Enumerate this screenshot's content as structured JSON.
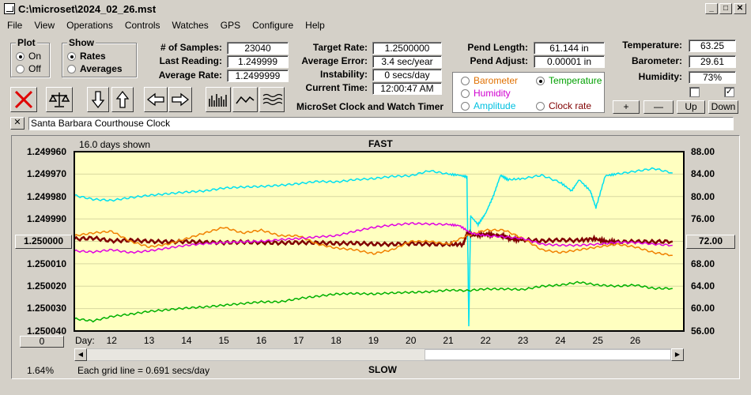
{
  "window": {
    "title": "C:\\microset\\2024_02_26.mst"
  },
  "menu": [
    "File",
    "View",
    "Operations",
    "Controls",
    "Watches",
    "GPS",
    "Configure",
    "Help"
  ],
  "plot_group": {
    "label": "Plot",
    "options": [
      {
        "label": "On",
        "selected": true
      },
      {
        "label": "Off",
        "selected": false
      }
    ]
  },
  "show_group": {
    "label": "Show",
    "options": [
      {
        "label": "Rates",
        "selected": true
      },
      {
        "label": "Averages",
        "selected": false
      }
    ]
  },
  "stats": {
    "samples": {
      "label": "# of Samples:",
      "value": "23040"
    },
    "last_reading": {
      "label": "Last Reading:",
      "value": "1.249999"
    },
    "average_rate": {
      "label": "Average Rate:",
      "value": "1.2499999"
    },
    "target_rate": {
      "label": "Target Rate:",
      "value": "1.2500000"
    },
    "average_error": {
      "label": "Average Error:",
      "value": "3.4 sec/year"
    },
    "instability": {
      "label": "Instability:",
      "value": "0 secs/day"
    },
    "current_time": {
      "label": "Current Time:",
      "value": "12:00:47 AM"
    },
    "pend_length": {
      "label": "Pend Length:",
      "value": "61.144 in"
    },
    "pend_adjust": {
      "label": "Pend Adjust:",
      "value": "0.00001 in"
    },
    "temperature": {
      "label": "Temperature:",
      "value": "63.25"
    },
    "barometer": {
      "label": "Barometer:",
      "value": "29.61"
    },
    "humidity": {
      "label": "Humidity:",
      "value": "73%"
    }
  },
  "app_caption": "MicroSet Clock and Watch Timer",
  "sensor_select": {
    "options": [
      {
        "label": "Barometer",
        "color": "#e07000",
        "selected": false
      },
      {
        "label": "Temperature",
        "color": "#00a000",
        "selected": true
      },
      {
        "label": "Humidity",
        "color": "#d000d0",
        "selected": false
      },
      {
        "label": "Amplitude",
        "color": "#00c0e0",
        "selected": false
      },
      {
        "label": "Clock rate",
        "color": "#800000",
        "selected": false
      }
    ]
  },
  "sensor_buttons": {
    "plus": "+",
    "minus": "—",
    "up": "Up",
    "down": "Down"
  },
  "checks": [
    {
      "checked": false
    },
    {
      "checked": true
    }
  ],
  "clock_name": "Santa Barbara Courthouse Clock",
  "close_label": "✕",
  "chart_labels": {
    "days_shown": "16.0 days shown",
    "top": "FAST",
    "bottom": "SLOW",
    "x_prefix": "Day:",
    "grid_note": "Each grid line = 0.691 secs/day",
    "left_percent": "1.64%",
    "left_zero_button": "0"
  },
  "colors": {
    "rate": "#800000",
    "temperature": "#00b000",
    "barometer": "#f08000",
    "humidity": "#e000e0",
    "amplitude": "#00e0f0",
    "chart_bg": "#ffffc0"
  },
  "chart_data": {
    "type": "line",
    "title": "",
    "x_ticks": [
      12,
      13,
      14,
      15,
      16,
      17,
      18,
      19,
      20,
      21,
      22,
      23,
      24,
      25,
      26
    ],
    "xlim": [
      11,
      27.3
    ],
    "y_left_ticks": [
      "1.249960",
      "1.249970",
      "1.249980",
      "1.249990",
      "1.250000",
      "1.250010",
      "1.250020",
      "1.250030",
      "1.250040"
    ],
    "y_left_center": "1.250000",
    "ylim_left": [
      1.25004,
      1.24996
    ],
    "y_right_ticks": [
      "88.00",
      "84.00",
      "80.00",
      "76.00",
      "72.00",
      "68.00",
      "64.00",
      "60.00",
      "56.00"
    ],
    "y_right_center": "72.00",
    "ylim_right": [
      56,
      88
    ],
    "series": [
      {
        "key": "amplitude",
        "axis": "right",
        "points": [
          [
            11,
            80.2
          ],
          [
            11.5,
            79.5
          ],
          [
            12,
            79.3
          ],
          [
            12.5,
            79.8
          ],
          [
            13,
            80.2
          ],
          [
            13.5,
            80.5
          ],
          [
            14,
            80.8
          ],
          [
            14.5,
            81
          ],
          [
            15,
            81.5
          ],
          [
            15.5,
            81.7
          ],
          [
            16,
            81.8
          ],
          [
            16.5,
            82
          ],
          [
            17,
            82.3
          ],
          [
            17.5,
            82.7
          ],
          [
            18,
            82.6
          ],
          [
            18.5,
            83
          ],
          [
            19,
            83.2
          ],
          [
            19.5,
            83.6
          ],
          [
            20,
            83.7
          ],
          [
            20.5,
            84.6
          ],
          [
            21,
            84
          ],
          [
            21.3,
            83.8
          ],
          [
            21.5,
            83.5
          ],
          [
            21.55,
            57
          ],
          [
            21.6,
            76.5
          ],
          [
            21.8,
            75
          ],
          [
            22,
            77
          ],
          [
            22.2,
            80
          ],
          [
            22.4,
            83.8
          ],
          [
            22.6,
            83
          ],
          [
            23,
            83.2
          ],
          [
            23.5,
            83.8
          ],
          [
            24,
            82.5
          ],
          [
            24.3,
            81
          ],
          [
            24.5,
            83
          ],
          [
            24.8,
            81
          ],
          [
            24.95,
            78
          ],
          [
            25.2,
            83.7
          ],
          [
            25.5,
            84
          ],
          [
            26,
            84.5
          ],
          [
            26.5,
            85
          ],
          [
            27,
            84.2
          ]
        ]
      },
      {
        "key": "rate",
        "axis": "left",
        "points": [
          [
            11,
            1.249999
          ],
          [
            11.5,
            1.2499985
          ],
          [
            12,
            1.2499998
          ],
          [
            12.5,
            1.2499995
          ],
          [
            13,
            1.25
          ],
          [
            13.5,
            1.2500002
          ],
          [
            14,
            1.2500001
          ],
          [
            14.5,
            1.2500004
          ],
          [
            15,
            1.2500006
          ],
          [
            15.5,
            1.2500003
          ],
          [
            16,
            1.2500005
          ],
          [
            16.5,
            1.2500007
          ],
          [
            17,
            1.2500005
          ],
          [
            17.5,
            1.2500006
          ],
          [
            18,
            1.2500009
          ],
          [
            18.5,
            1.2500008
          ],
          [
            19,
            1.2500012
          ],
          [
            19.5,
            1.2500013
          ],
          [
            20,
            1.250001
          ],
          [
            20.5,
            1.2500012
          ],
          [
            21,
            1.2500014
          ],
          [
            21.4,
            1.2500013
          ],
          [
            21.5,
            1.2499965
          ],
          [
            21.7,
            1.2499973
          ],
          [
            22,
            1.2499968
          ],
          [
            22.3,
            1.2499973
          ],
          [
            22.5,
            1.2499978
          ],
          [
            22.7,
            1.249999
          ],
          [
            23,
            1.2499993
          ],
          [
            23.5,
            1.2499998
          ],
          [
            24,
            1.2499994
          ],
          [
            24.5,
            1.2499996
          ],
          [
            24.9,
            1.2499988
          ],
          [
            25.2,
            1.25
          ],
          [
            25.5,
            1.2500003
          ],
          [
            26,
            1.2500001
          ],
          [
            26.5,
            1.2500002
          ],
          [
            27,
            1.25
          ]
        ]
      },
      {
        "key": "barometer",
        "axis": "right",
        "points": [
          [
            11,
            73
          ],
          [
            11.5,
            73.5
          ],
          [
            12,
            73.8
          ],
          [
            12.5,
            72
          ],
          [
            13,
            71
          ],
          [
            13.5,
            71.5
          ],
          [
            14,
            72.5
          ],
          [
            14.5,
            73.5
          ],
          [
            15,
            74.5
          ],
          [
            15.5,
            73.5
          ],
          [
            16,
            74
          ],
          [
            16.5,
            73
          ],
          [
            17,
            73
          ],
          [
            17.5,
            71.5
          ],
          [
            18,
            70.8
          ],
          [
            18.5,
            70.5
          ],
          [
            19,
            69.8
          ],
          [
            19.5,
            70.5
          ],
          [
            20,
            72
          ],
          [
            20.5,
            72
          ],
          [
            21,
            71.5
          ],
          [
            21.5,
            73
          ],
          [
            22,
            74
          ],
          [
            22.5,
            74
          ],
          [
            23,
            72.5
          ],
          [
            23.5,
            70.5
          ],
          [
            24,
            70
          ],
          [
            24.5,
            70.5
          ],
          [
            25,
            71
          ],
          [
            25.5,
            71.5
          ],
          [
            26,
            71
          ],
          [
            26.5,
            70
          ],
          [
            27,
            69.5
          ]
        ]
      },
      {
        "key": "humidity",
        "axis": "right",
        "points": [
          [
            11,
            70.3
          ],
          [
            11.5,
            70.1
          ],
          [
            12,
            70.5
          ],
          [
            12.5,
            70
          ],
          [
            13,
            70.3
          ],
          [
            13.5,
            70.8
          ],
          [
            14,
            71.3
          ],
          [
            14.5,
            71.6
          ],
          [
            15,
            71.8
          ],
          [
            15.5,
            71.9
          ],
          [
            16,
            72
          ],
          [
            16.5,
            72.3
          ],
          [
            17,
            72.5
          ],
          [
            17.5,
            72.8
          ],
          [
            18,
            73
          ],
          [
            18.5,
            73.8
          ],
          [
            19,
            74.5
          ],
          [
            19.5,
            74.9
          ],
          [
            20,
            75.2
          ],
          [
            20.5,
            75.1
          ],
          [
            21,
            75
          ],
          [
            21.3,
            74.8
          ],
          [
            21.6,
            73.5
          ],
          [
            22,
            73
          ],
          [
            22.5,
            72.8
          ],
          [
            23,
            72.5
          ],
          [
            23.5,
            71.5
          ],
          [
            24,
            71.3
          ],
          [
            24.5,
            71.3
          ],
          [
            25,
            71.5
          ],
          [
            25.5,
            71.8
          ],
          [
            26,
            71.8
          ],
          [
            26.5,
            71.5
          ],
          [
            27,
            71.3
          ]
        ]
      },
      {
        "key": "temperature",
        "axis": "right",
        "points": [
          [
            11,
            58.2
          ],
          [
            11.5,
            57.8
          ],
          [
            12,
            58.6
          ],
          [
            12.5,
            59
          ],
          [
            13,
            59.5
          ],
          [
            13.5,
            59.8
          ],
          [
            14,
            60.1
          ],
          [
            14.5,
            60.3
          ],
          [
            15,
            60.6
          ],
          [
            15.5,
            60.9
          ],
          [
            16,
            61.2
          ],
          [
            16.5,
            61.2
          ],
          [
            17,
            61.8
          ],
          [
            17.5,
            62.2
          ],
          [
            18,
            62.6
          ],
          [
            18.5,
            62.7
          ],
          [
            19,
            62.6
          ],
          [
            19.5,
            62.8
          ],
          [
            20,
            62.9
          ],
          [
            20.5,
            63
          ],
          [
            21,
            63.3
          ],
          [
            21.5,
            63.2
          ],
          [
            22,
            63.5
          ],
          [
            22.5,
            63.5
          ],
          [
            23,
            63.4
          ],
          [
            23.5,
            64
          ],
          [
            24,
            64.2
          ],
          [
            24.5,
            64.7
          ],
          [
            25,
            64.2
          ],
          [
            25.5,
            64
          ],
          [
            26,
            64.2
          ],
          [
            26.5,
            63.6
          ],
          [
            27,
            63.6
          ]
        ]
      }
    ]
  }
}
